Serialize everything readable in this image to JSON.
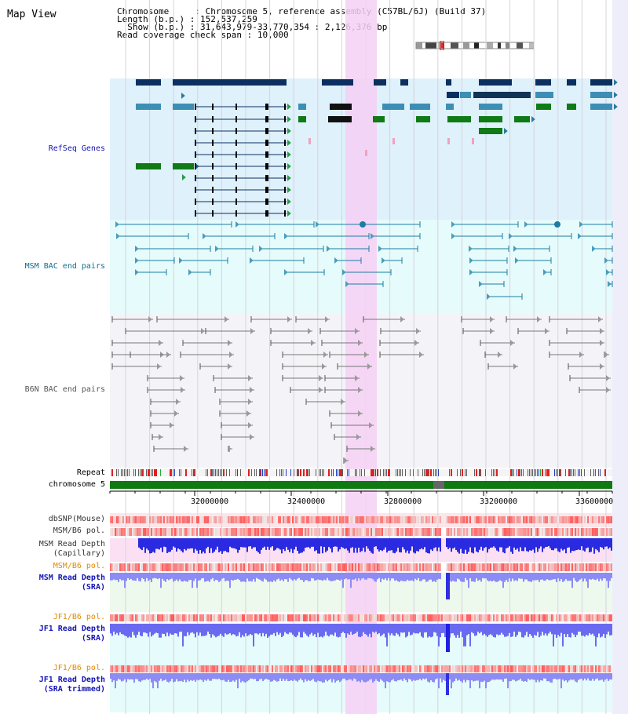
{
  "header": {
    "title": "Map View",
    "chromosome_label": "Chromosome",
    "chromosome_value": "Chromosome 5, reference assembly (C57BL/6J) (Build 37)",
    "length_label": "Length (b.p.)",
    "length_value": "152,537,259",
    "show_label": "Show (b.p.)",
    "show_value": "31,643,979-33,770,354 : 2,126,376 bp",
    "coverage_label": "Read coverage check span",
    "coverage_value": "10,000"
  },
  "tracks": {
    "refseq": "RefSeq Genes",
    "msm_bac": "MSM BAC end pairs",
    "b6n_bac": "B6N BAC end pairs",
    "repeat": "Repeat",
    "chromosome": "chromosome 5",
    "dbsnp": "dbSNP(Mouse)",
    "msm_b6_pol_1": "MSM/B6 pol.",
    "msm_read_cap_1": "MSM Read Depth",
    "msm_read_cap_2": "(Capillary)",
    "msm_b6_pol_2": "MSM/B6 pol.",
    "msm_read_sra_1": "MSM Read Depth",
    "msm_read_sra_2": "(SRA)",
    "jf1_pol_1": "JF1/B6 pol.",
    "jf1_read_sra_1": "JF1 Read Depth",
    "jf1_read_sra_2": "(SRA)",
    "jf1_pol_2": "JF1/B6 pol.",
    "jf1_read_trim_1": "JF1 Read Depth",
    "jf1_read_trim_2": "(SRA trimmed)"
  },
  "axis": {
    "ticks": [
      "32000000",
      "32400000",
      "32800000",
      "33200000",
      "33600000"
    ]
  },
  "colors": {
    "refseq_bg": "#dff1fb",
    "msm_bg": "#e6fbfb",
    "b6n_bg": "#f4f4f8",
    "highlight": "#f6d0f4",
    "gene_dark": "#0b3060",
    "gene_mid": "#3d8eb4",
    "gene_green": "#107a16",
    "msm_line": "#1c7ca2",
    "b6n_line": "#666666",
    "chrom_green": "#0f7a12",
    "snp_red": "#f06060",
    "depth_blue": "#2222dd"
  },
  "icons": {
    "cytoband": "chromosome-ideogram-icon"
  }
}
